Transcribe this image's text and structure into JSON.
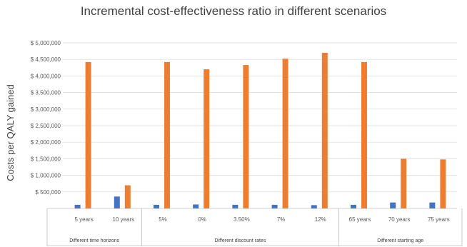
{
  "chart_data": {
    "type": "bar",
    "title": "Incremental cost-effectiveness ratio in different scenarios",
    "ylabel": "Costs per QALY gained",
    "xlabel": "",
    "ylim": [
      0,
      5000000
    ],
    "yticks": [
      "$ 500,000",
      "$ 1,000,000",
      "$ 1,500,000",
      "$ 2,000,000",
      "$ 2,500,000",
      "$ 3,000,000",
      "$ 3,500,000",
      "$ 4,000,000",
      "$ 4,500,000",
      "$ 5,000,000"
    ],
    "grid": true,
    "categories": [
      "5 years",
      "10 years",
      "5%",
      "0%",
      "3.50%",
      "7%",
      "12%",
      "65 years",
      "70 years",
      "75 years"
    ],
    "groups": [
      {
        "label": "Different time horizons",
        "count": 2
      },
      {
        "label": "Different discount rates",
        "count": 5
      },
      {
        "label": "Different starting age",
        "count": 3
      }
    ],
    "series": [
      {
        "color": "#4472C4",
        "values": [
          110000,
          360000,
          110000,
          120000,
          110000,
          110000,
          100000,
          110000,
          180000,
          180000
        ]
      },
      {
        "color": "#ED7D31",
        "values": [
          4420000,
          700000,
          4420000,
          4200000,
          4330000,
          4520000,
          4700000,
          4420000,
          1500000,
          1480000
        ]
      }
    ]
  }
}
